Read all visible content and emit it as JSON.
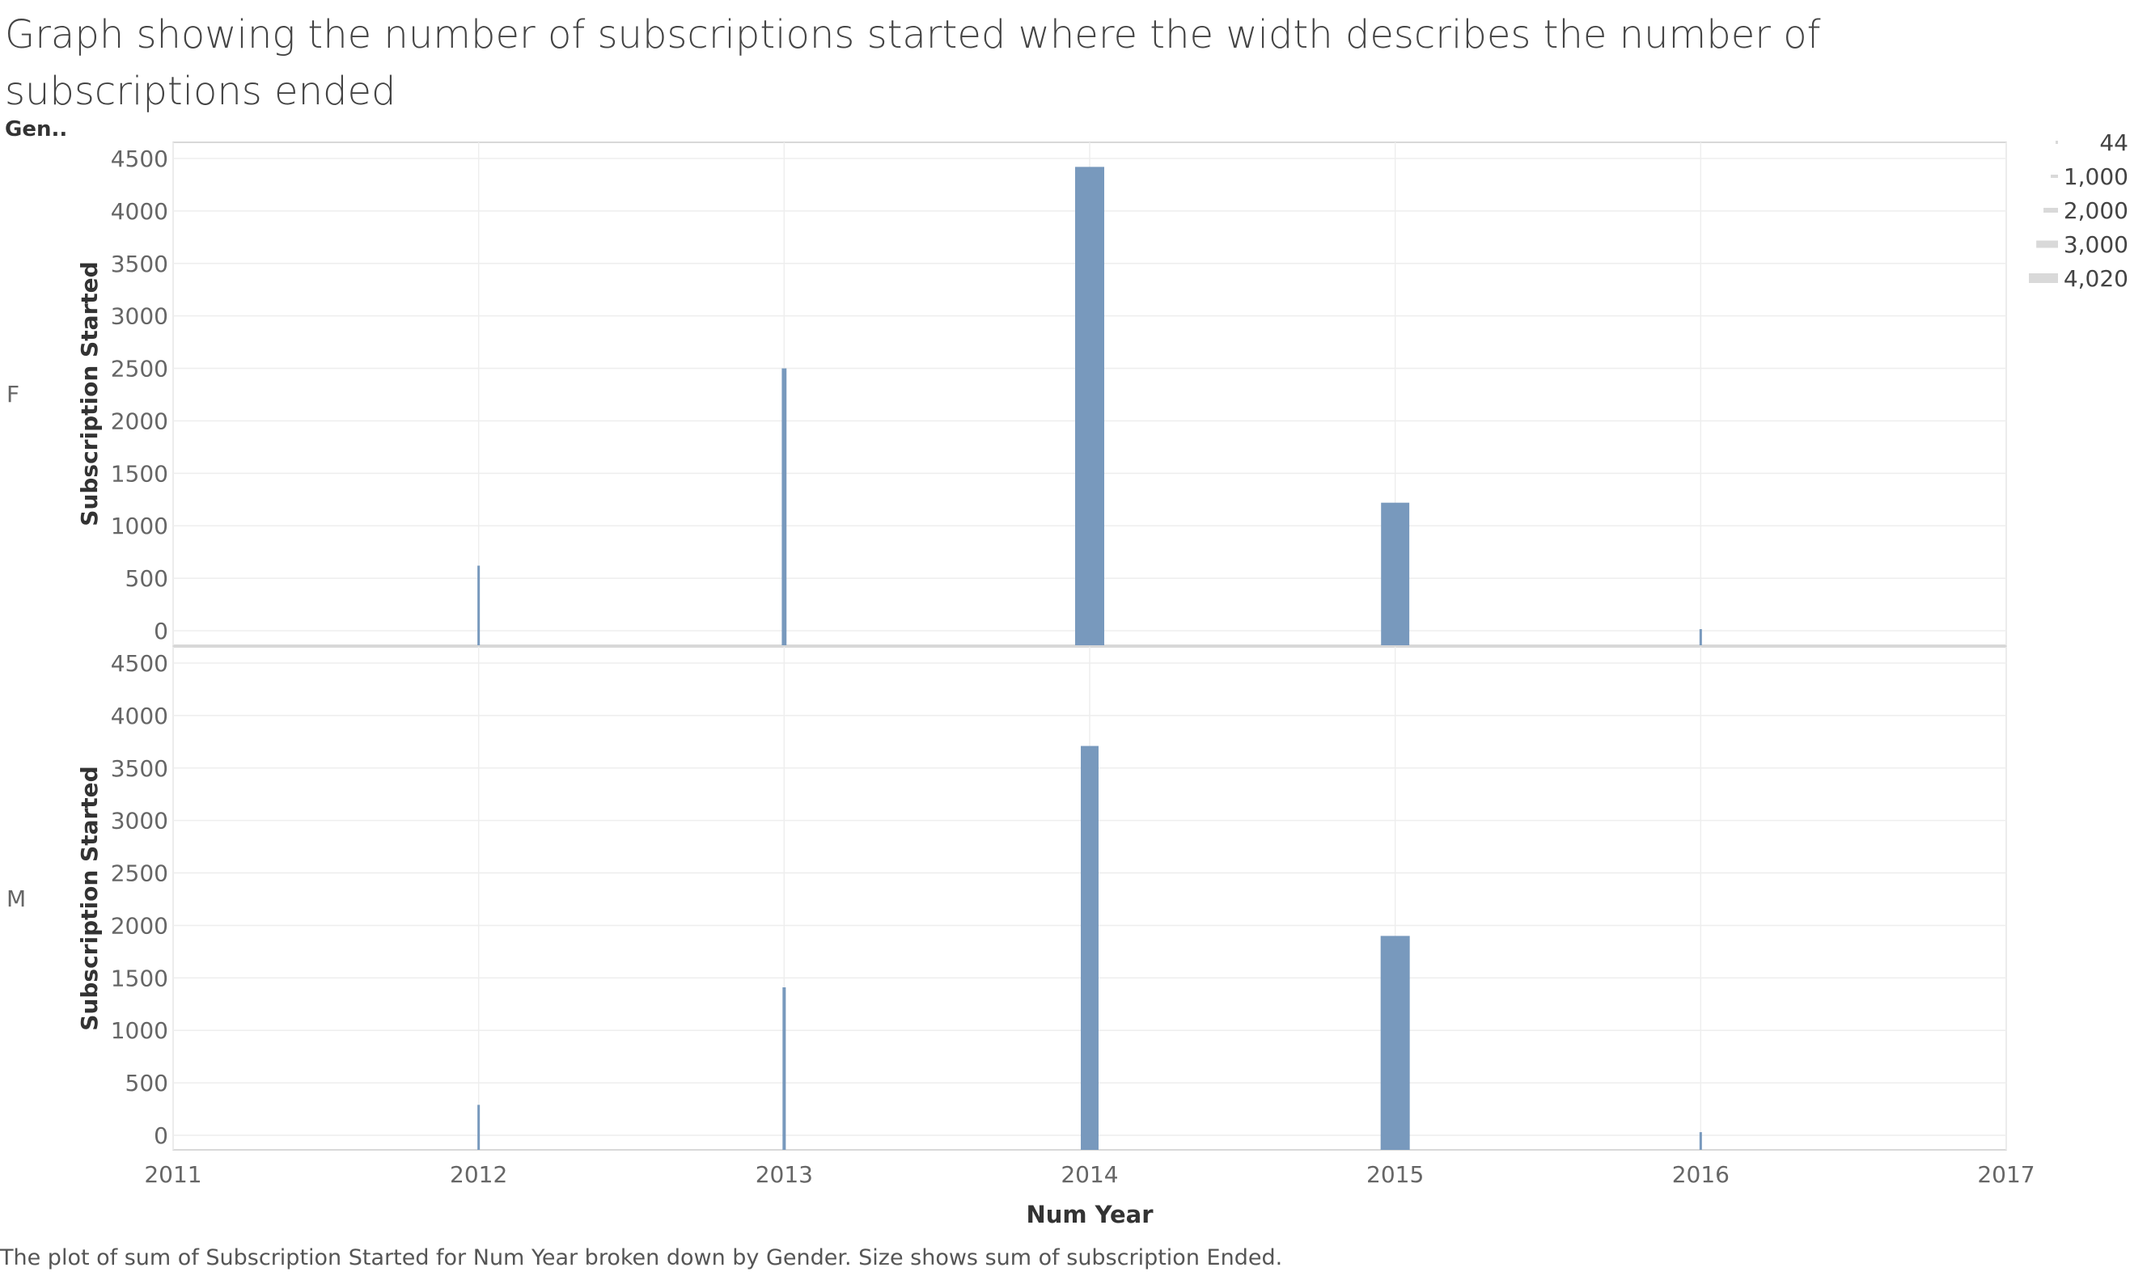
{
  "title": "Graph showing the number of subscriptions started where the width describes the number of subscriptions ended",
  "caption": "The plot of sum of Subscription Started for Num Year broken down by Gender.  Size shows sum of subscription Ended.",
  "colors": {
    "bar": "#7899bd",
    "grid": "#eeeeee",
    "axis": "#cccccc",
    "legend": "#d9d9d9"
  },
  "chart_data": {
    "type": "bar",
    "facet_header": "Gen..",
    "xlabel": "Num Year",
    "ylabel": "Subscription Started",
    "x_ticks": [
      "2011",
      "2012",
      "2013",
      "2014",
      "2015",
      "2016",
      "2017"
    ],
    "xlim": [
      2011,
      2017
    ],
    "y_ticks": [
      "0",
      "500",
      "1000",
      "1500",
      "2000",
      "2500",
      "3000",
      "3500",
      "4000",
      "4500"
    ],
    "ylim": [
      0,
      4500
    ],
    "size_legend": [
      "44",
      "1,000",
      "2,000",
      "3,000",
      "4,020"
    ],
    "size_legend_values": [
      44,
      1000,
      2000,
      3000,
      4020
    ],
    "facets": [
      {
        "label": "F",
        "bars": [
          {
            "x": 2012,
            "value": 620,
            "size": 60
          },
          {
            "x": 2013,
            "value": 2500,
            "size": 650
          },
          {
            "x": 2014,
            "value": 4420,
            "size": 4020
          },
          {
            "x": 2015,
            "value": 1220,
            "size": 3900
          },
          {
            "x": 2016,
            "value": 15,
            "size": 44
          }
        ]
      },
      {
        "label": "M",
        "bars": [
          {
            "x": 2012,
            "value": 290,
            "size": 60
          },
          {
            "x": 2013,
            "value": 1410,
            "size": 450
          },
          {
            "x": 2014,
            "value": 3710,
            "size": 2450
          },
          {
            "x": 2015,
            "value": 1900,
            "size": 4020
          },
          {
            "x": 2016,
            "value": 30,
            "size": 60
          }
        ]
      }
    ]
  }
}
